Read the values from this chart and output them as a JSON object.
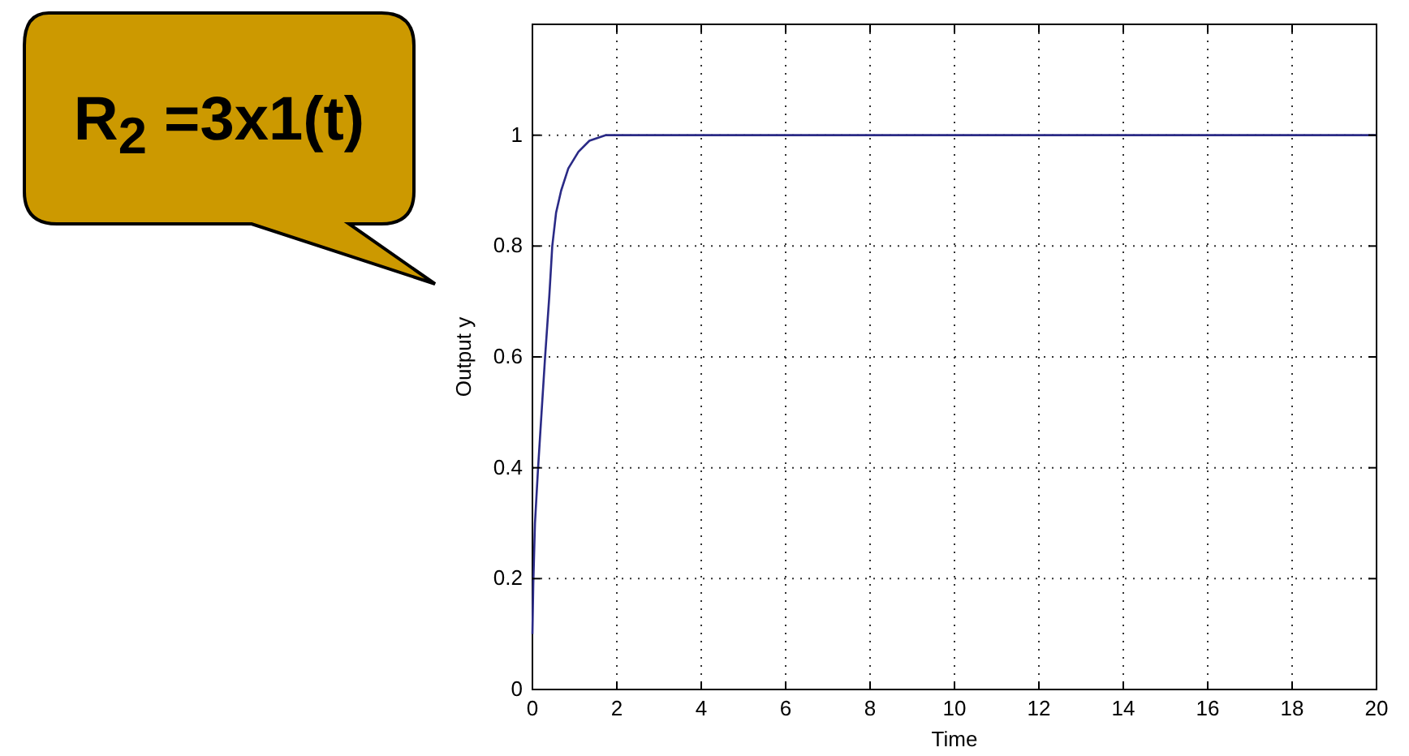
{
  "chart_data": {
    "type": "line",
    "xlabel": "Time",
    "ylabel": "Output y",
    "annotations": [
      "R$_{2}$ =3x1(t)"
    ],
    "x": [
      0,
      0.02,
      0.06,
      0.13,
      0.2,
      0.3,
      0.4,
      0.47,
      0.56,
      0.68,
      0.85,
      1.09,
      1.35,
      1.73,
      2,
      5,
      10,
      15,
      20
    ],
    "series": [
      {
        "color": "#2a2a86",
        "values": [
          0.1,
          0.19,
          0.3,
          0.395,
          0.48,
          0.6,
          0.71,
          0.8,
          0.86,
          0.9,
          0.94,
          0.97,
          0.99,
          1,
          1,
          1,
          1,
          1,
          1
        ]
      }
    ],
    "xlim": [
      0,
      20
    ],
    "xticks": [
      0,
      2,
      4,
      6,
      8,
      10,
      12,
      14,
      16,
      18,
      20
    ],
    "ylim": [
      0,
      1.2
    ],
    "yticks": [
      0,
      0.2,
      0.4,
      0.6,
      0.8,
      1
    ],
    "grid": true,
    "line_style": "solid",
    "marker": "none"
  }
}
